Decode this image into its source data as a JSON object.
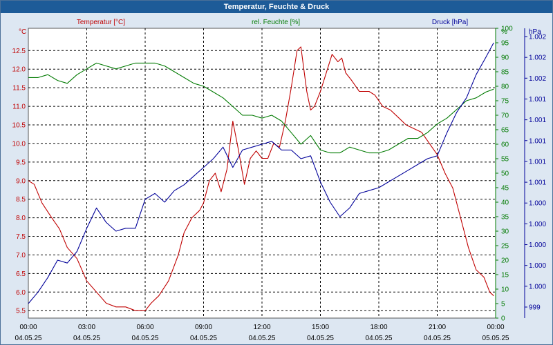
{
  "window": {
    "title": "Temperatur, Feuchte & Druck"
  },
  "colors": {
    "temperature": "#c00000",
    "humidity": "#007a00",
    "pressure": "#000099",
    "grid": "#000000",
    "plot_bg": "#ffffff"
  },
  "chart_data": {
    "type": "line",
    "title": "Temperatur, Feuchte & Druck",
    "x_label_unit": "h",
    "x_ticks": [
      {
        "h": 0,
        "time": "00:00",
        "date": "04.05.25"
      },
      {
        "h": 3,
        "time": "03:00",
        "date": "04.05.25"
      },
      {
        "h": 6,
        "time": "06:00",
        "date": "04.05.25"
      },
      {
        "h": 9,
        "time": "09:00",
        "date": "04.05.25"
      },
      {
        "h": 12,
        "time": "12:00",
        "date": "04.05.25"
      },
      {
        "h": 15,
        "time": "15:00",
        "date": "04.05.25"
      },
      {
        "h": 18,
        "time": "18:00",
        "date": "04.05.25"
      },
      {
        "h": 21,
        "time": "21:00",
        "date": "04.05.25"
      },
      {
        "h": 24,
        "time": "00:00",
        "date": "05.05.25"
      }
    ],
    "axes": {
      "left": {
        "unit": "°C",
        "min": 5.3,
        "max": 13.1,
        "ticks": [
          "5.5",
          "6.0",
          "6.5",
          "7.0",
          "7.5",
          "8.0",
          "8.5",
          "9.0",
          "9.5",
          "10.0",
          "10.5",
          "11.0",
          "11.5",
          "12.0",
          "12.5"
        ]
      },
      "right1": {
        "unit": "%",
        "min": 0,
        "max": 100,
        "ticks": [
          "0",
          "5",
          "10",
          "15",
          "20",
          "25",
          "30",
          "35",
          "40",
          "45",
          "50",
          "55",
          "60",
          "65",
          "70",
          "75",
          "80",
          "85",
          "90",
          "95",
          "100"
        ]
      },
      "right2": {
        "unit": "hPa",
        "labels": [
          "999",
          "1.000",
          "1.000",
          "1.000",
          "1.000",
          "1.000",
          "1.001",
          "1.001",
          "1.001",
          "1.001",
          "1.001",
          "1.002",
          "1.002",
          "1.002"
        ]
      }
    },
    "series": [
      {
        "name": "Temperatur [°C]",
        "key": "temperature",
        "axis": "left",
        "points": [
          [
            0,
            9.0
          ],
          [
            0.3,
            8.9
          ],
          [
            0.7,
            8.4
          ],
          [
            1.2,
            8.0
          ],
          [
            1.6,
            7.7
          ],
          [
            2.0,
            7.2
          ],
          [
            2.5,
            6.9
          ],
          [
            3.0,
            6.3
          ],
          [
            3.5,
            6.0
          ],
          [
            4.0,
            5.7
          ],
          [
            4.5,
            5.6
          ],
          [
            5.0,
            5.6
          ],
          [
            5.5,
            5.5
          ],
          [
            6.0,
            5.5
          ],
          [
            6.3,
            5.7
          ],
          [
            6.7,
            5.9
          ],
          [
            7.2,
            6.3
          ],
          [
            7.7,
            7.0
          ],
          [
            8.0,
            7.6
          ],
          [
            8.4,
            8.0
          ],
          [
            8.8,
            8.2
          ],
          [
            9.0,
            8.4
          ],
          [
            9.3,
            9.0
          ],
          [
            9.6,
            9.2
          ],
          [
            9.9,
            8.7
          ],
          [
            10.2,
            9.3
          ],
          [
            10.5,
            10.6
          ],
          [
            10.8,
            9.8
          ],
          [
            11.1,
            8.9
          ],
          [
            11.4,
            9.6
          ],
          [
            11.7,
            9.8
          ],
          [
            12.0,
            9.6
          ],
          [
            12.3,
            9.6
          ],
          [
            12.6,
            10.0
          ],
          [
            12.9,
            9.9
          ],
          [
            13.2,
            10.6
          ],
          [
            13.5,
            11.5
          ],
          [
            13.8,
            12.5
          ],
          [
            14.0,
            12.6
          ],
          [
            14.3,
            11.4
          ],
          [
            14.5,
            10.9
          ],
          [
            14.7,
            11.0
          ],
          [
            15.0,
            11.4
          ],
          [
            15.3,
            11.9
          ],
          [
            15.6,
            12.4
          ],
          [
            15.9,
            12.2
          ],
          [
            16.1,
            12.3
          ],
          [
            16.3,
            11.9
          ],
          [
            16.6,
            11.7
          ],
          [
            17.0,
            11.4
          ],
          [
            17.5,
            11.4
          ],
          [
            17.8,
            11.3
          ],
          [
            18.2,
            11.0
          ],
          [
            18.6,
            10.9
          ],
          [
            19.0,
            10.7
          ],
          [
            19.4,
            10.5
          ],
          [
            19.8,
            10.4
          ],
          [
            20.2,
            10.3
          ],
          [
            20.6,
            10.0
          ],
          [
            21.0,
            9.7
          ],
          [
            21.4,
            9.2
          ],
          [
            21.8,
            8.8
          ],
          [
            22.2,
            8.0
          ],
          [
            22.6,
            7.2
          ],
          [
            23.0,
            6.6
          ],
          [
            23.4,
            6.4
          ],
          [
            23.7,
            6.0
          ],
          [
            23.9,
            5.9
          ]
        ]
      },
      {
        "name": "rel. Feuchte [%]",
        "key": "humidity",
        "axis": "right1",
        "points": [
          [
            0,
            83
          ],
          [
            0.5,
            83
          ],
          [
            1.0,
            84
          ],
          [
            1.5,
            82
          ],
          [
            2.0,
            81
          ],
          [
            2.5,
            84
          ],
          [
            3.0,
            86
          ],
          [
            3.5,
            88
          ],
          [
            4.0,
            87
          ],
          [
            4.5,
            86
          ],
          [
            5.0,
            87
          ],
          [
            5.5,
            88
          ],
          [
            6.0,
            88
          ],
          [
            6.5,
            88
          ],
          [
            7.0,
            87
          ],
          [
            7.5,
            85
          ],
          [
            8.0,
            83
          ],
          [
            8.5,
            81
          ],
          [
            9.0,
            80
          ],
          [
            9.5,
            78
          ],
          [
            10.0,
            76
          ],
          [
            10.5,
            73
          ],
          [
            11.0,
            70
          ],
          [
            11.5,
            70
          ],
          [
            12.0,
            69
          ],
          [
            12.5,
            70
          ],
          [
            13.0,
            68
          ],
          [
            13.5,
            64
          ],
          [
            14.0,
            60
          ],
          [
            14.5,
            63
          ],
          [
            15.0,
            58
          ],
          [
            15.5,
            57
          ],
          [
            16.0,
            57
          ],
          [
            16.5,
            59
          ],
          [
            17.0,
            58
          ],
          [
            17.5,
            57
          ],
          [
            18.0,
            57
          ],
          [
            18.5,
            58
          ],
          [
            19.0,
            60
          ],
          [
            19.5,
            62
          ],
          [
            20.0,
            62
          ],
          [
            20.5,
            64
          ],
          [
            21.0,
            67
          ],
          [
            21.5,
            69
          ],
          [
            22.0,
            72
          ],
          [
            22.5,
            75
          ],
          [
            23.0,
            76
          ],
          [
            23.5,
            78
          ],
          [
            23.9,
            79
          ]
        ]
      },
      {
        "name": "Druck [hPa]",
        "key": "pressure",
        "axis": "right1",
        "points": [
          [
            0,
            5
          ],
          [
            0.5,
            9
          ],
          [
            1.0,
            14
          ],
          [
            1.5,
            20
          ],
          [
            2.0,
            19
          ],
          [
            2.5,
            23
          ],
          [
            3.0,
            31
          ],
          [
            3.5,
            38
          ],
          [
            4.0,
            33
          ],
          [
            4.5,
            30
          ],
          [
            5.0,
            31
          ],
          [
            5.5,
            31
          ],
          [
            6.0,
            41
          ],
          [
            6.5,
            43
          ],
          [
            7.0,
            40
          ],
          [
            7.5,
            44
          ],
          [
            8.0,
            46
          ],
          [
            8.5,
            49
          ],
          [
            9.0,
            52
          ],
          [
            9.5,
            55
          ],
          [
            10.0,
            59
          ],
          [
            10.5,
            52
          ],
          [
            11.0,
            58
          ],
          [
            11.5,
            59
          ],
          [
            12.0,
            60
          ],
          [
            12.5,
            61
          ],
          [
            13.0,
            58
          ],
          [
            13.5,
            58
          ],
          [
            14.0,
            55
          ],
          [
            14.5,
            56
          ],
          [
            15.0,
            47
          ],
          [
            15.5,
            40
          ],
          [
            16.0,
            35
          ],
          [
            16.5,
            38
          ],
          [
            17.0,
            43
          ],
          [
            17.5,
            44
          ],
          [
            18.0,
            45
          ],
          [
            18.5,
            47
          ],
          [
            19.0,
            49
          ],
          [
            19.5,
            51
          ],
          [
            20.0,
            53
          ],
          [
            20.5,
            55
          ],
          [
            21.0,
            56
          ],
          [
            21.5,
            64
          ],
          [
            22.0,
            71
          ],
          [
            22.5,
            76
          ],
          [
            23.0,
            84
          ],
          [
            23.5,
            90
          ],
          [
            23.9,
            95
          ]
        ]
      }
    ]
  }
}
